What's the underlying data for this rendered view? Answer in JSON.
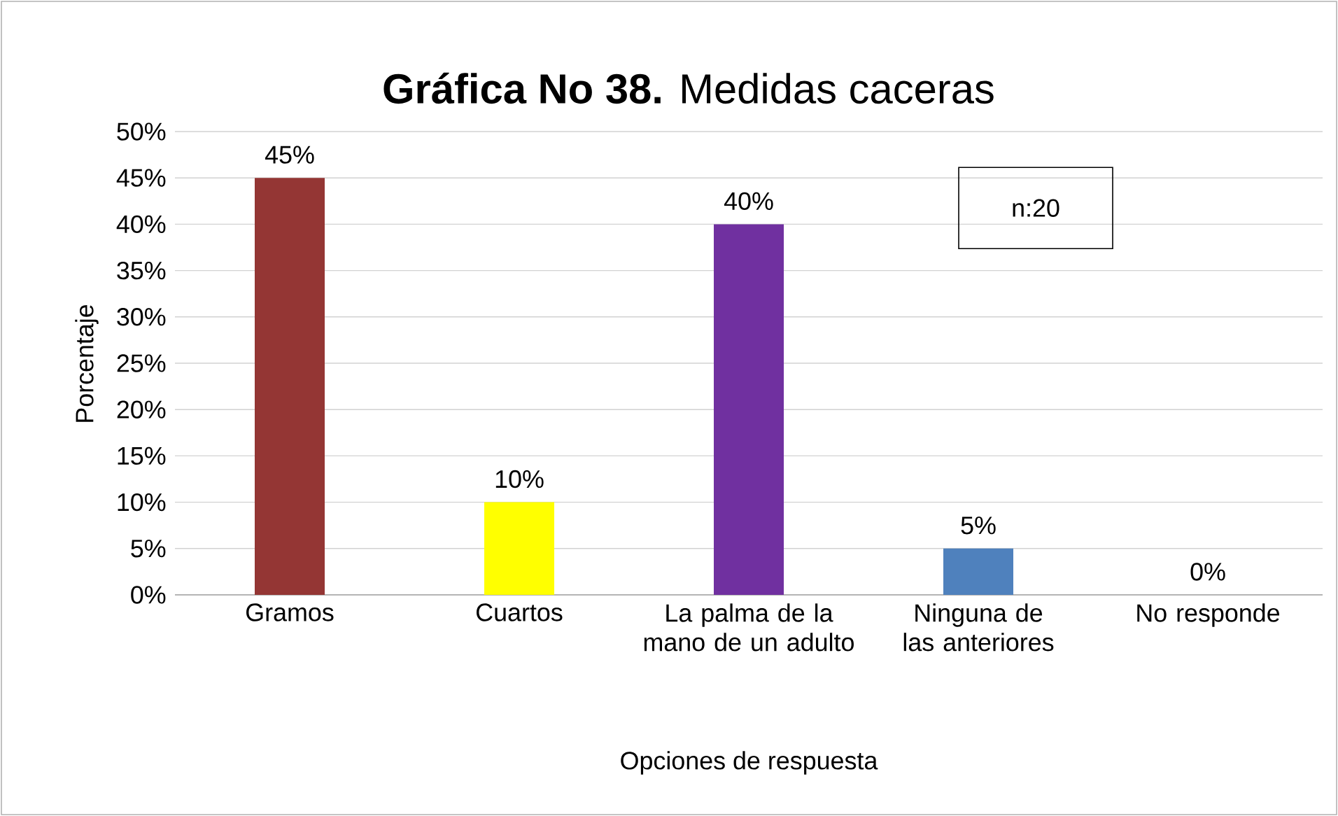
{
  "chart_data": {
    "type": "bar",
    "title": "**Gráfica No 38.** Medidas caceras",
    "xlabel": "Opciones de respuesta",
    "ylabel": "Porcentaje",
    "categories": [
      "Gramos",
      "Cuartos",
      "La palma de la mano de un adulto",
      "Ninguna de las anteriores",
      "No responde"
    ],
    "values": [
      45,
      10,
      40,
      5,
      0
    ],
    "colors": [
      "#943634",
      "#ffff00",
      "#7030a0",
      "#4f81bd",
      "#4f81bd"
    ],
    "value_labels": [
      "45%",
      "10%",
      "40%",
      "5%",
      "0%"
    ],
    "ylim": [
      0,
      50
    ],
    "yticks": [
      {
        "value": 0,
        "label": "0%"
      },
      {
        "value": 5,
        "label": "5%"
      },
      {
        "value": 10,
        "label": "10%"
      },
      {
        "value": 15,
        "label": "15%"
      },
      {
        "value": 20,
        "label": "20%"
      },
      {
        "value": 25,
        "label": "25%"
      },
      {
        "value": 30,
        "label": "30%"
      },
      {
        "value": 35,
        "label": "35%"
      },
      {
        "value": 40,
        "label": "40%"
      },
      {
        "value": 45,
        "label": "45%"
      },
      {
        "value": 50,
        "label": "50%"
      }
    ],
    "grid": "y",
    "annotations": [
      "n:20"
    ]
  }
}
